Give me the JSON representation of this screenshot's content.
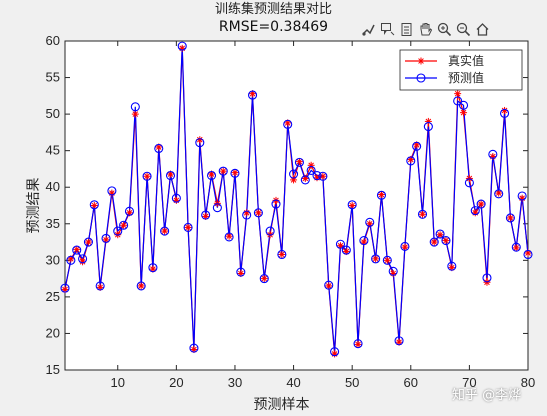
{
  "figure": {
    "title": "训练集预测结果对比",
    "subtitle": "RMSE=0.38469",
    "watermark": "知乎 @李烨"
  },
  "toolbar": {
    "icons": [
      "brush-icon",
      "datatip-icon",
      "legend-icon",
      "pan-icon",
      "zoom-in-icon",
      "zoom-out-icon",
      "home-icon"
    ]
  },
  "colors": {
    "true_series": "#ff0000",
    "pred_series": "#0000ff",
    "plot_bg": "#ffffff",
    "figure_bg": "#f0f0f0"
  },
  "chart_data": {
    "type": "line",
    "xlabel": "预测样本",
    "ylabel": "预测结果",
    "xlim": [
      1,
      80
    ],
    "ylim": [
      15,
      60
    ],
    "xticks": [
      10,
      20,
      30,
      40,
      50,
      60,
      70,
      80
    ],
    "yticks": [
      15,
      20,
      25,
      30,
      35,
      40,
      45,
      50,
      55,
      60
    ],
    "grid": false,
    "legend_position": "top-right",
    "x": [
      1,
      2,
      3,
      4,
      5,
      6,
      7,
      8,
      9,
      10,
      11,
      12,
      13,
      14,
      15,
      16,
      17,
      18,
      19,
      20,
      21,
      22,
      23,
      24,
      25,
      26,
      27,
      28,
      29,
      30,
      31,
      32,
      33,
      34,
      35,
      36,
      37,
      38,
      39,
      40,
      41,
      42,
      43,
      44,
      45,
      46,
      47,
      48,
      49,
      50,
      51,
      52,
      53,
      54,
      55,
      56,
      57,
      58,
      59,
      60,
      61,
      62,
      63,
      64,
      65,
      66,
      67,
      68,
      69,
      70,
      71,
      72,
      73,
      74,
      75,
      76,
      77,
      78,
      79,
      80
    ],
    "series": [
      {
        "name": "真实值",
        "marker": "asterisk",
        "values": [
          26.0,
          30.2,
          31.5,
          29.8,
          32.5,
          37.5,
          26.3,
          32.8,
          39.2,
          33.5,
          34.8,
          36.5,
          50.0,
          26.5,
          41.5,
          28.8,
          45.5,
          34.0,
          41.8,
          38.2,
          59.0,
          34.5,
          17.8,
          46.5,
          36.0,
          41.8,
          37.8,
          42.2,
          33.3,
          42.0,
          28.2,
          36.5,
          52.8,
          36.5,
          27.5,
          33.5,
          38.2,
          30.8,
          48.8,
          41.0,
          43.5,
          41.2,
          43.0,
          41.3,
          41.5,
          26.5,
          17.2,
          32.0,
          31.2,
          37.5,
          18.5,
          32.5,
          35.0,
          30.2,
          39.0,
          30.0,
          28.2,
          18.8,
          31.8,
          43.8,
          45.8,
          36.3,
          49.0,
          32.5,
          33.5,
          32.7,
          29.0,
          52.8,
          50.2,
          41.2,
          36.5,
          37.7,
          27.0,
          44.2,
          39.2,
          50.5,
          35.8,
          31.7,
          38.5,
          31.0
        ]
      },
      {
        "name": "预测值",
        "marker": "circle",
        "values": [
          26.2,
          30.0,
          31.4,
          30.2,
          32.5,
          37.6,
          26.5,
          33.0,
          39.5,
          34.0,
          34.8,
          36.7,
          51.0,
          26.5,
          41.5,
          29.0,
          45.3,
          34.0,
          41.6,
          38.5,
          59.3,
          34.5,
          18.0,
          46.1,
          36.2,
          41.6,
          37.2,
          42.2,
          33.2,
          41.9,
          28.4,
          36.2,
          52.6,
          36.5,
          27.5,
          34.0,
          37.7,
          30.8,
          48.6,
          41.8,
          43.4,
          41.0,
          42.3,
          41.6,
          41.5,
          26.6,
          17.5,
          32.2,
          31.4,
          37.6,
          18.6,
          32.7,
          35.2,
          30.2,
          38.9,
          30.0,
          28.5,
          19.0,
          31.9,
          43.6,
          45.6,
          36.3,
          48.3,
          32.5,
          33.6,
          32.7,
          29.2,
          51.8,
          51.2,
          40.6,
          36.8,
          37.7,
          27.6,
          44.5,
          39.1,
          50.1,
          35.8,
          31.8,
          38.8,
          30.8
        ]
      }
    ]
  }
}
